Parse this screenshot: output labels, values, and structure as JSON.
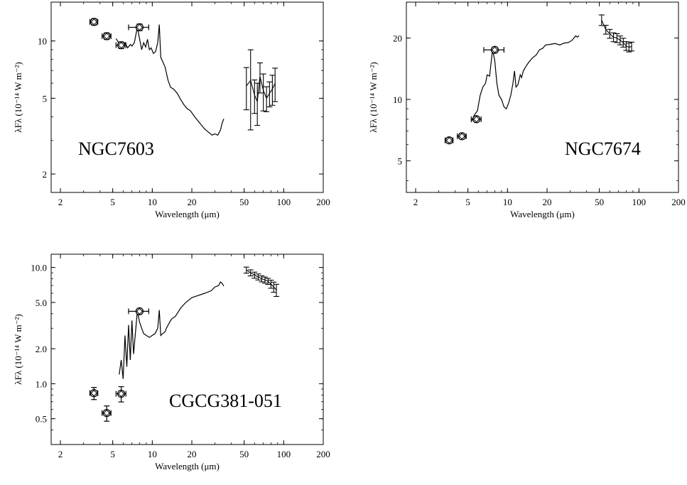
{
  "chart_data": [
    {
      "type": "line",
      "annotation": "NGC7603",
      "xlabel": "Wavelength (μm)",
      "ylabel": "λFλ (10⁻¹⁴ W m⁻²)",
      "xscale": "log",
      "yscale": "log",
      "xlim": [
        1.7,
        200
      ],
      "ylim": [
        1.6,
        16
      ],
      "xticks": [
        2,
        5,
        10,
        20,
        50,
        100,
        200
      ],
      "xtick_labels": [
        "2",
        "5",
        "10",
        "20",
        "50",
        "100",
        "200"
      ],
      "yticks": [
        2,
        5,
        10
      ],
      "ytick_labels": [
        "2",
        "5",
        "10"
      ],
      "spectrum": {
        "x": [
          5.3,
          5.6,
          6.0,
          6.2,
          6.5,
          6.8,
          7.0,
          7.3,
          7.7,
          8.0,
          8.3,
          8.6,
          8.9,
          9.2,
          9.5,
          9.8,
          10.2,
          10.6,
          11.0,
          11.3,
          11.6,
          12.0,
          12.5,
          12.8,
          13.2,
          13.8,
          14.5,
          15.5,
          16.5,
          17.5,
          18.5,
          19.5,
          21,
          23,
          25,
          27,
          28.5,
          30,
          31.5,
          33,
          34,
          35
        ],
        "y": [
          10.3,
          9.7,
          9.5,
          9.8,
          9.2,
          9.6,
          9.4,
          9.8,
          11.8,
          10.3,
          9.0,
          9.8,
          9.3,
          10.2,
          9.0,
          9.2,
          8.6,
          8.8,
          9.8,
          12.2,
          8.2,
          7.8,
          7.3,
          6.8,
          6.2,
          5.7,
          5.6,
          5.3,
          4.9,
          4.6,
          4.4,
          4.3,
          4.0,
          3.7,
          3.45,
          3.3,
          3.2,
          3.25,
          3.2,
          3.4,
          3.7,
          3.9
        ]
      },
      "photometry": [
        {
          "x": 3.6,
          "y": 12.6,
          "xerr": 0.25,
          "yerr_pct": 4
        },
        {
          "x": 4.5,
          "y": 10.6,
          "xerr": 0.35,
          "yerr_pct": 4
        },
        {
          "x": 5.8,
          "y": 9.5,
          "xerr": 0.5,
          "yerr_pct": 4
        },
        {
          "x": 8.0,
          "y": 11.8,
          "xerr": 1.4,
          "yerr_pct": 4
        }
      ],
      "far_ir": [
        {
          "x": 52,
          "y": 5.8,
          "yerr_pct": 25
        },
        {
          "x": 56,
          "y": 6.2,
          "yerr_pct": 45
        },
        {
          "x": 60,
          "y": 5.2,
          "yerr_pct": 20
        },
        {
          "x": 63,
          "y": 4.8,
          "yerr_pct": 25
        },
        {
          "x": 66,
          "y": 6.5,
          "yerr_pct": 18
        },
        {
          "x": 70,
          "y": 5.5,
          "yerr_pct": 22
        },
        {
          "x": 74,
          "y": 5.0,
          "yerr_pct": 15
        },
        {
          "x": 78,
          "y": 5.3,
          "yerr_pct": 15
        },
        {
          "x": 82,
          "y": 5.6,
          "yerr_pct": 18
        },
        {
          "x": 86,
          "y": 6.0,
          "yerr_pct": 20
        }
      ]
    },
    {
      "type": "line",
      "annotation": "NGC7674",
      "xlabel": "Wavelength (μm)",
      "ylabel": "λFλ (10⁻¹⁴ W m⁻²)",
      "xscale": "log",
      "yscale": "log",
      "xlim": [
        1.7,
        200
      ],
      "ylim": [
        3.5,
        30
      ],
      "xticks": [
        2,
        5,
        10,
        20,
        50,
        100,
        200
      ],
      "xtick_labels": [
        "2",
        "5",
        "10",
        "20",
        "50",
        "100",
        "200"
      ],
      "yticks": [
        5,
        10,
        20
      ],
      "ytick_labels": [
        "5",
        "10",
        "20"
      ],
      "spectrum": {
        "x": [
          5.3,
          5.6,
          5.9,
          6.2,
          6.5,
          6.8,
          7.0,
          7.3,
          7.7,
          8.0,
          8.3,
          8.6,
          9.0,
          9.4,
          9.8,
          10.2,
          10.6,
          11.0,
          11.3,
          11.6,
          12.0,
          12.5,
          12.8,
          13.2,
          13.8,
          14.5,
          15.5,
          16.5,
          17.5,
          18.5,
          19.5,
          21,
          23,
          25,
          27,
          29,
          31,
          33,
          34,
          35
        ],
        "y": [
          7.8,
          8.4,
          8.8,
          10.5,
          11.5,
          12.0,
          13.2,
          13.0,
          17.5,
          15.5,
          12.0,
          10.5,
          10.0,
          9.2,
          9.0,
          9.6,
          10.5,
          12.0,
          13.8,
          11.5,
          11.8,
          13.2,
          12.8,
          13.8,
          14.5,
          15.2,
          16.0,
          16.5,
          17.5,
          17.8,
          18.5,
          18.6,
          18.8,
          18.5,
          18.9,
          19.0,
          19.5,
          20.5,
          20.2,
          20.6
        ]
      },
      "photometry": [
        {
          "x": 3.6,
          "y": 6.3,
          "xerr": 0.25,
          "yerr_pct": 3
        },
        {
          "x": 4.5,
          "y": 6.6,
          "xerr": 0.35,
          "yerr_pct": 3
        },
        {
          "x": 5.8,
          "y": 8.0,
          "xerr": 0.5,
          "yerr_pct": 3
        },
        {
          "x": 8.0,
          "y": 17.5,
          "xerr": 1.4,
          "yerr_pct": 3
        }
      ],
      "far_ir": [
        {
          "x": 52,
          "y": 24.5,
          "yerr_pct": 6
        },
        {
          "x": 56,
          "y": 22.0,
          "yerr_pct": 5
        },
        {
          "x": 60,
          "y": 21.0,
          "yerr_pct": 5
        },
        {
          "x": 64,
          "y": 20.2,
          "yerr_pct": 5
        },
        {
          "x": 68,
          "y": 20.0,
          "yerr_pct": 5
        },
        {
          "x": 72,
          "y": 19.5,
          "yerr_pct": 5
        },
        {
          "x": 76,
          "y": 19.0,
          "yerr_pct": 5
        },
        {
          "x": 80,
          "y": 18.3,
          "yerr_pct": 5
        },
        {
          "x": 84,
          "y": 18.0,
          "yerr_pct": 5
        },
        {
          "x": 88,
          "y": 18.2,
          "yerr_pct": 5
        }
      ]
    },
    {
      "type": "line",
      "annotation": "CGCG381-051",
      "xlabel": "Wavelength (μm)",
      "ylabel": "λFλ (10⁻¹⁴ W m⁻²)",
      "xscale": "log",
      "yscale": "log",
      "xlim": [
        1.7,
        200
      ],
      "ylim": [
        0.3,
        13
      ],
      "xticks": [
        2,
        5,
        10,
        20,
        50,
        100,
        200
      ],
      "xtick_labels": [
        "2",
        "5",
        "10",
        "20",
        "50",
        "100",
        "200"
      ],
      "yticks": [
        0.5,
        1.0,
        2.0,
        5.0,
        10.0
      ],
      "ytick_labels": [
        "0.5",
        "1.0",
        "2.0",
        "5.0",
        "10.0"
      ],
      "spectrum": {
        "x": [
          5.6,
          5.8,
          6.0,
          6.2,
          6.4,
          6.6,
          6.8,
          7.0,
          7.2,
          7.5,
          7.7,
          8.0,
          8.3,
          8.6,
          9.0,
          9.5,
          10.0,
          10.5,
          11.0,
          11.3,
          11.6,
          12.0,
          12.5,
          12.8,
          13.2,
          14.0,
          15.0,
          16.5,
          18,
          20,
          22,
          25,
          28,
          30,
          32,
          33,
          34,
          35
        ],
        "y": [
          1.2,
          1.6,
          1.1,
          2.6,
          1.4,
          3.2,
          1.6,
          3.5,
          1.8,
          3.0,
          4.2,
          3.4,
          3.0,
          2.7,
          2.6,
          2.5,
          2.6,
          2.7,
          3.0,
          4.3,
          2.6,
          2.7,
          2.8,
          3.0,
          3.2,
          3.6,
          3.8,
          4.5,
          5.0,
          5.5,
          5.7,
          6.0,
          6.3,
          6.8,
          7.0,
          7.5,
          7.3,
          6.9
        ]
      },
      "photometry": [
        {
          "x": 3.6,
          "y": 0.83,
          "xerr": 0.25,
          "yerr_pct": 12
        },
        {
          "x": 4.5,
          "y": 0.56,
          "xerr": 0.35,
          "yerr_pct": 15
        },
        {
          "x": 5.8,
          "y": 0.82,
          "xerr": 0.5,
          "yerr_pct": 15
        },
        {
          "x": 8.0,
          "y": 4.2,
          "xerr": 1.4,
          "yerr_pct": 5
        }
      ],
      "far_ir": [
        {
          "x": 52,
          "y": 9.5,
          "yerr_pct": 6
        },
        {
          "x": 56,
          "y": 9.0,
          "yerr_pct": 6
        },
        {
          "x": 60,
          "y": 8.6,
          "yerr_pct": 6
        },
        {
          "x": 64,
          "y": 8.3,
          "yerr_pct": 6
        },
        {
          "x": 68,
          "y": 8.0,
          "yerr_pct": 6
        },
        {
          "x": 72,
          "y": 7.8,
          "yerr_pct": 6
        },
        {
          "x": 76,
          "y": 7.6,
          "yerr_pct": 6
        },
        {
          "x": 80,
          "y": 7.2,
          "yerr_pct": 8
        },
        {
          "x": 84,
          "y": 6.8,
          "yerr_pct": 10
        },
        {
          "x": 88,
          "y": 6.4,
          "yerr_pct": 12
        }
      ]
    }
  ]
}
